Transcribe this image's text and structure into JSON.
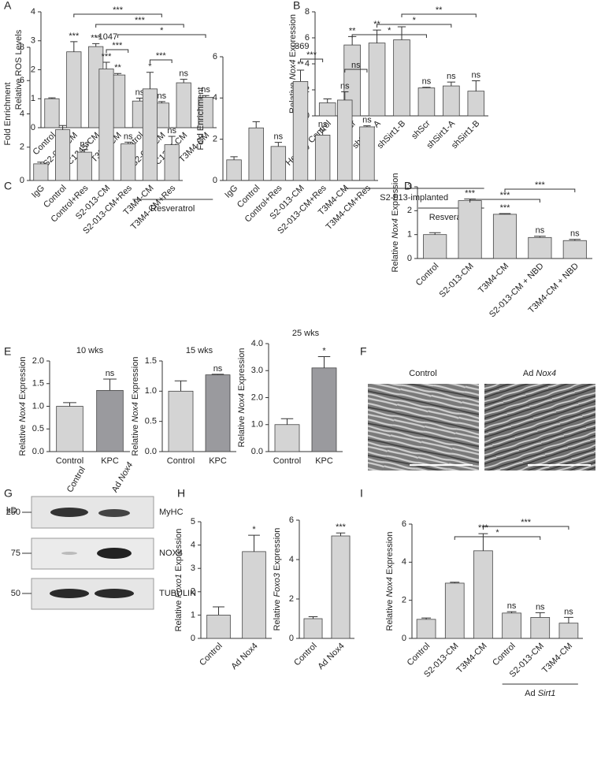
{
  "chart_data": [
    {
      "type": "bar",
      "panel": "A",
      "ylabel": "Relative ROS Levels",
      "categories": [
        "Control",
        "S2-013-CM",
        "KPC1245-CM",
        "T3M4-CM",
        "Control",
        "S2-013-CM",
        "KPC1245-CM",
        "T3M4-CM"
      ],
      "values": [
        1.0,
        2.62,
        2.8,
        1.82,
        0.92,
        0.85,
        1.55,
        1.05
      ],
      "errors": [
        0.03,
        0.35,
        0.1,
        0.05,
        0.1,
        0.05,
        0.12,
        0.06
      ],
      "labels": [
        null,
        "***",
        "***",
        "**",
        "ns",
        "ns",
        "ns",
        "ns"
      ],
      "brackets": [
        {
          "from": 1,
          "to": 5,
          "label": "***"
        },
        {
          "from": 2,
          "to": 6,
          "label": "***"
        },
        {
          "from": 3,
          "to": 7,
          "label": "*"
        }
      ],
      "groups": [
        {
          "label": "Resveratrol",
          "from": 4,
          "to": 7
        }
      ],
      "color": "#d4d4d4",
      "ylim": [
        0,
        4
      ],
      "yticks": [
        0,
        1,
        2,
        3,
        4
      ]
    },
    {
      "type": "bar",
      "panel": "B",
      "ylabel": [
        "Relative ",
        "Nox4",
        " Expression"
      ],
      "categories": [
        "Healthy Control",
        "shScr",
        "shSirt1-A",
        "shSirt1-B",
        "shScr",
        "shSirt1-A",
        "shSirt1-B"
      ],
      "values": [
        1.0,
        5.45,
        5.6,
        5.85,
        2.15,
        2.3,
        1.9
      ],
      "errors": [
        0.3,
        0.65,
        1.0,
        1.0,
        0.05,
        0.3,
        0.8
      ],
      "labels": [
        null,
        "**",
        "**",
        null,
        "ns",
        "ns",
        "ns"
      ],
      "brackets": [
        {
          "from": 3,
          "to": 6,
          "label": "**"
        },
        {
          "from": 2,
          "to": 5,
          "label": "*"
        },
        {
          "from": 1,
          "to": 4,
          "label": "*"
        }
      ],
      "groups": [
        {
          "label": "S2-013-implanted",
          "from": 1,
          "to": 6
        },
        {
          "label": "Resveratrol",
          "from": 4,
          "to": 6
        }
      ],
      "color": "#d4d4d4",
      "ylim": [
        0,
        8
      ],
      "yticks": [
        0,
        2,
        4,
        6,
        8
      ]
    },
    {
      "type": "bar",
      "panel": "C",
      "title": "-1047",
      "ylabel": "Fold Enrichment",
      "categories": [
        "IgG",
        "Control",
        "Control+Res",
        "S2-013-CM",
        "S2-013-CM+Res",
        "T3M4-CM",
        "T3M4-CM+Res"
      ],
      "values": [
        1.0,
        3.05,
        1.7,
        6.7,
        2.2,
        5.5,
        2.15
      ],
      "errors": [
        0.1,
        0.25,
        0.15,
        0.4,
        0.1,
        1.0,
        0.5
      ],
      "labels": [
        null,
        null,
        "ns",
        "***",
        "ns",
        "*",
        "ns"
      ],
      "brackets": [
        {
          "from": 3,
          "to": 4,
          "label": "***"
        },
        {
          "from": 5,
          "to": 6,
          "label": "***"
        }
      ],
      "color": "#d4d4d4",
      "ylim": [
        0,
        8
      ],
      "yticks": [
        0,
        2,
        4,
        6,
        8
      ]
    },
    {
      "type": "bar",
      "title": "-369",
      "ylabel": "Fold Enrichment",
      "categories": [
        "IgG",
        "Control",
        "Control+Res",
        "S2-013-CM",
        "S2-013-CM+Res",
        "T3M4-CM",
        "T3M4-CM+Res"
      ],
      "values": [
        1.0,
        2.55,
        1.65,
        4.8,
        2.2,
        3.9,
        2.6
      ],
      "errors": [
        0.15,
        0.3,
        0.2,
        0.55,
        0.25,
        0.4,
        0.05
      ],
      "labels": [
        null,
        null,
        "ns",
        "**",
        "ns",
        "ns",
        "ns"
      ],
      "brackets": [
        {
          "from": 3,
          "to": 4,
          "label": "***"
        },
        {
          "from": 5,
          "to": 6,
          "label": "ns"
        }
      ],
      "color": "#d4d4d4",
      "ylim": [
        0,
        6
      ],
      "yticks": [
        0,
        2,
        4,
        6
      ]
    },
    {
      "type": "bar",
      "panel": "D",
      "ylabel": [
        "Relative ",
        "Nox4",
        " Expression"
      ],
      "categories": [
        "Control",
        "S2-013-CM",
        "T3M4-CM",
        "S2-013-CM + NBD",
        "T3M4-CM + NBD"
      ],
      "values": [
        1.0,
        2.42,
        1.85,
        0.88,
        0.75
      ],
      "errors": [
        0.08,
        0.07,
        0.03,
        0.05,
        0.05
      ],
      "labels": [
        null,
        "***",
        "***",
        "ns",
        "ns"
      ],
      "brackets": [
        {
          "from": 2,
          "to": 4,
          "label": "***"
        },
        {
          "from": 1,
          "to": 3,
          "label": "***"
        }
      ],
      "color": "#d4d4d4",
      "ylim": [
        0,
        3
      ],
      "yticks": [
        0,
        1,
        2,
        3
      ]
    },
    {
      "type": "bar",
      "panel": "E",
      "title": "10 wks",
      "ylabel": [
        "Relative ",
        "Nox4",
        " Expression"
      ],
      "categories": [
        "Control",
        "KPC"
      ],
      "values": [
        1.0,
        1.35
      ],
      "errors": [
        0.08,
        0.25
      ],
      "labels": [
        null,
        "ns"
      ],
      "colors": [
        "#d4d4d4",
        "#9a9a9e"
      ],
      "ylim": [
        0,
        2.0
      ],
      "yticks": [
        {
          "value": 0,
          "label": "0.0"
        },
        0.5,
        {
          "value": 1,
          "label": "1.0"
        },
        1.5,
        {
          "value": 2,
          "label": "2.0"
        }
      ]
    },
    {
      "type": "bar",
      "title": "15 wks",
      "ylabel": [
        "Relative ",
        "Nox4",
        " Expression"
      ],
      "categories": [
        "Control",
        "KPC"
      ],
      "values": [
        1.0,
        1.27
      ],
      "errors": [
        0.17,
        0.01
      ],
      "labels": [
        null,
        "ns"
      ],
      "colors": [
        "#d4d4d4",
        "#9a9a9e"
      ],
      "ylim": [
        0,
        1.5
      ],
      "yticks": [
        {
          "value": 0,
          "label": "0.0"
        },
        0.5,
        {
          "value": 1,
          "label": "1.0"
        },
        1.5
      ]
    },
    {
      "type": "bar",
      "title": "25 wks",
      "ylabel": [
        "Relative ",
        "Nox4",
        " Expression"
      ],
      "categories": [
        "Control",
        "KPC"
      ],
      "values": [
        1.0,
        3.1
      ],
      "errors": [
        0.22,
        0.42
      ],
      "labels": [
        null,
        "*"
      ],
      "colors": [
        "#d4d4d4",
        "#9a9a9e"
      ],
      "ylim": [
        0,
        4.0
      ],
      "yticks": [
        {
          "value": 0,
          "label": "0.0"
        },
        {
          "value": 1,
          "label": "1.0"
        },
        {
          "value": 2,
          "label": "2.0"
        },
        {
          "value": 3,
          "label": "3.0"
        },
        {
          "value": 4,
          "label": "4.0"
        }
      ]
    },
    {
      "type": "bar",
      "panel": "H",
      "ylabel": [
        "Relative ",
        "Foxo1",
        " Expression"
      ],
      "categories": [
        "Control",
        "Ad Nox4"
      ],
      "values": [
        1.0,
        3.72
      ],
      "errors": [
        0.35,
        0.7
      ],
      "labels": [
        null,
        "*"
      ],
      "color": "#d4d4d4",
      "ylim": [
        0,
        5
      ],
      "yticks": [
        0,
        1,
        2,
        3,
        4,
        5
      ]
    },
    {
      "type": "bar",
      "ylabel": [
        "Relative ",
        "Foxo3",
        " Expression"
      ],
      "categories": [
        "Control",
        "Ad Nox4"
      ],
      "values": [
        1.0,
        5.2
      ],
      "errors": [
        0.1,
        0.15
      ],
      "labels": [
        null,
        "***"
      ],
      "color": "#d4d4d4",
      "ylim": [
        0,
        6
      ],
      "yticks": [
        0,
        2,
        4,
        6
      ]
    },
    {
      "type": "bar",
      "panel": "I",
      "ylabel": [
        "Relative ",
        "Nox4",
        " Expression"
      ],
      "categories": [
        "Control",
        "S2-013-CM",
        "T3M4-CM",
        "Control",
        "S2-013-CM",
        "T3M4-CM"
      ],
      "values": [
        1.0,
        2.9,
        4.6,
        1.33,
        1.1,
        0.8
      ],
      "errors": [
        0.07,
        0.05,
        0.9,
        0.07,
        0.25,
        0.3
      ],
      "labels": [
        null,
        null,
        "***",
        "ns",
        "ns",
        "ns"
      ],
      "brackets": [
        {
          "from": 2,
          "to": 5,
          "label": "***"
        },
        {
          "from": 1,
          "to": 4,
          "label": "*"
        }
      ],
      "groups": [
        {
          "label": [
            "Ad ",
            "Sirt1"
          ],
          "from": 3,
          "to": 5
        }
      ],
      "color": "#d4d4d4",
      "ylim": [
        0,
        6
      ],
      "yticks": [
        0,
        2,
        4,
        6
      ]
    }
  ],
  "panel_F": {
    "panel": "F",
    "images": [
      [
        "Control"
      ],
      [
        "Ad ",
        "Nox4"
      ]
    ]
  },
  "panel_G": {
    "panel": "G",
    "unit": "kD",
    "columns": [
      [
        "Control"
      ],
      [
        "Ad ",
        "Nox4"
      ]
    ],
    "rows": [
      {
        "marker": "250",
        "label": "MyHC"
      },
      {
        "marker": "75",
        "label": "NOX4"
      },
      {
        "marker": "50",
        "label": "TUBULIN"
      }
    ]
  }
}
